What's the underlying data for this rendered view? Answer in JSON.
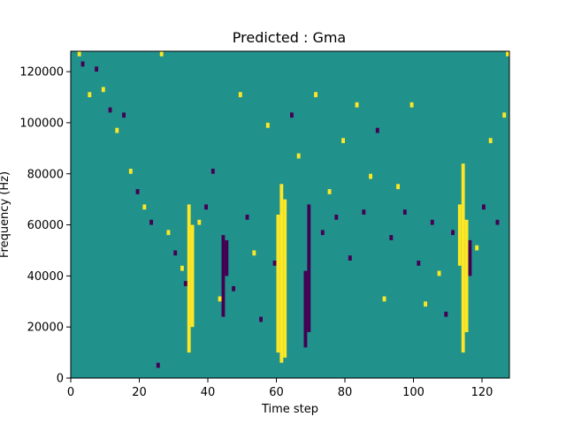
{
  "chart_data": {
    "type": "heatmap",
    "title": "Predicted : Gma",
    "xlabel": "Time step",
    "ylabel": "Frequency (Hz)",
    "xlim": [
      0,
      128
    ],
    "ylim": [
      0,
      128000
    ],
    "x_ticks": [
      0,
      20,
      40,
      60,
      80,
      100,
      120
    ],
    "y_ticks": [
      0,
      20000,
      40000,
      60000,
      80000,
      100000,
      120000
    ],
    "x_tick_labels": [
      "0",
      "20",
      "40",
      "60",
      "80",
      "100",
      "120"
    ],
    "y_tick_labels": [
      "0",
      "20000",
      "40000",
      "60000",
      "80000",
      "100000",
      "120000"
    ],
    "grid": false,
    "n_time_steps": 128,
    "n_freq_bins": 64,
    "value_levels": [
      -1,
      0,
      1
    ],
    "colors": {
      "-1": "#440154",
      "0": "#21918c",
      "1": "#fde725"
    },
    "bands": [
      {
        "level": 1,
        "x": [
          34,
          35
        ],
        "y": [
          10000,
          68000
        ]
      },
      {
        "level": 1,
        "x": [
          35,
          36
        ],
        "y": [
          20000,
          60000
        ]
      },
      {
        "level": 1,
        "x": [
          60,
          61
        ],
        "y": [
          10000,
          64000
        ]
      },
      {
        "level": 1,
        "x": [
          61,
          62
        ],
        "y": [
          6000,
          76000
        ]
      },
      {
        "level": 1,
        "x": [
          62,
          63
        ],
        "y": [
          8000,
          70000
        ]
      },
      {
        "level": 1,
        "x": [
          113,
          114
        ],
        "y": [
          44000,
          68000
        ]
      },
      {
        "level": 1,
        "x": [
          114,
          115
        ],
        "y": [
          10000,
          84000
        ]
      },
      {
        "level": 1,
        "x": [
          115,
          116
        ],
        "y": [
          18000,
          62000
        ]
      },
      {
        "level": -1,
        "x": [
          44,
          45
        ],
        "y": [
          24000,
          56000
        ]
      },
      {
        "level": -1,
        "x": [
          45,
          46
        ],
        "y": [
          40000,
          54000
        ]
      },
      {
        "level": -1,
        "x": [
          68,
          69
        ],
        "y": [
          12000,
          42000
        ]
      },
      {
        "level": -1,
        "x": [
          69,
          70
        ],
        "y": [
          18000,
          68000
        ]
      },
      {
        "level": -1,
        "x": [
          116,
          117
        ],
        "y": [
          40000,
          54000
        ]
      }
    ],
    "cells": [
      {
        "t": 2,
        "f": 126000,
        "v": 1
      },
      {
        "t": 3,
        "f": 122000,
        "v": -1
      },
      {
        "t": 5,
        "f": 110000,
        "v": 1
      },
      {
        "t": 7,
        "f": 120000,
        "v": -1
      },
      {
        "t": 9,
        "f": 112000,
        "v": 1
      },
      {
        "t": 11,
        "f": 104000,
        "v": -1
      },
      {
        "t": 13,
        "f": 96000,
        "v": 1
      },
      {
        "t": 15,
        "f": 102000,
        "v": -1
      },
      {
        "t": 17,
        "f": 80000,
        "v": 1
      },
      {
        "t": 19,
        "f": 72000,
        "v": -1
      },
      {
        "t": 21,
        "f": 66000,
        "v": 1
      },
      {
        "t": 23,
        "f": 60000,
        "v": -1
      },
      {
        "t": 25,
        "f": 4000,
        "v": -1
      },
      {
        "t": 26,
        "f": 126000,
        "v": 1
      },
      {
        "t": 28,
        "f": 56000,
        "v": 1
      },
      {
        "t": 30,
        "f": 48000,
        "v": -1
      },
      {
        "t": 32,
        "f": 42000,
        "v": 1
      },
      {
        "t": 33,
        "f": 36000,
        "v": -1
      },
      {
        "t": 37,
        "f": 60000,
        "v": 1
      },
      {
        "t": 39,
        "f": 66000,
        "v": -1
      },
      {
        "t": 41,
        "f": 80000,
        "v": -1
      },
      {
        "t": 43,
        "f": 30000,
        "v": 1
      },
      {
        "t": 47,
        "f": 34000,
        "v": -1
      },
      {
        "t": 49,
        "f": 110000,
        "v": 1
      },
      {
        "t": 51,
        "f": 62000,
        "v": -1
      },
      {
        "t": 53,
        "f": 48000,
        "v": 1
      },
      {
        "t": 55,
        "f": 22000,
        "v": -1
      },
      {
        "t": 57,
        "f": 98000,
        "v": 1
      },
      {
        "t": 59,
        "f": 44000,
        "v": -1
      },
      {
        "t": 64,
        "f": 102000,
        "v": -1
      },
      {
        "t": 66,
        "f": 86000,
        "v": 1
      },
      {
        "t": 71,
        "f": 110000,
        "v": 1
      },
      {
        "t": 73,
        "f": 56000,
        "v": -1
      },
      {
        "t": 75,
        "f": 72000,
        "v": 1
      },
      {
        "t": 77,
        "f": 62000,
        "v": -1
      },
      {
        "t": 79,
        "f": 92000,
        "v": 1
      },
      {
        "t": 81,
        "f": 46000,
        "v": -1
      },
      {
        "t": 83,
        "f": 106000,
        "v": 1
      },
      {
        "t": 85,
        "f": 64000,
        "v": -1
      },
      {
        "t": 87,
        "f": 78000,
        "v": 1
      },
      {
        "t": 89,
        "f": 96000,
        "v": -1
      },
      {
        "t": 91,
        "f": 30000,
        "v": 1
      },
      {
        "t": 93,
        "f": 54000,
        "v": -1
      },
      {
        "t": 95,
        "f": 74000,
        "v": 1
      },
      {
        "t": 97,
        "f": 64000,
        "v": -1
      },
      {
        "t": 99,
        "f": 106000,
        "v": 1
      },
      {
        "t": 101,
        "f": 44000,
        "v": -1
      },
      {
        "t": 103,
        "f": 28000,
        "v": 1
      },
      {
        "t": 105,
        "f": 60000,
        "v": -1
      },
      {
        "t": 107,
        "f": 40000,
        "v": 1
      },
      {
        "t": 109,
        "f": 24000,
        "v": -1
      },
      {
        "t": 111,
        "f": 56000,
        "v": -1
      },
      {
        "t": 118,
        "f": 50000,
        "v": 1
      },
      {
        "t": 120,
        "f": 66000,
        "v": -1
      },
      {
        "t": 122,
        "f": 92000,
        "v": 1
      },
      {
        "t": 124,
        "f": 60000,
        "v": -1
      },
      {
        "t": 126,
        "f": 102000,
        "v": 1
      },
      {
        "t": 127,
        "f": 126000,
        "v": 1
      }
    ]
  }
}
